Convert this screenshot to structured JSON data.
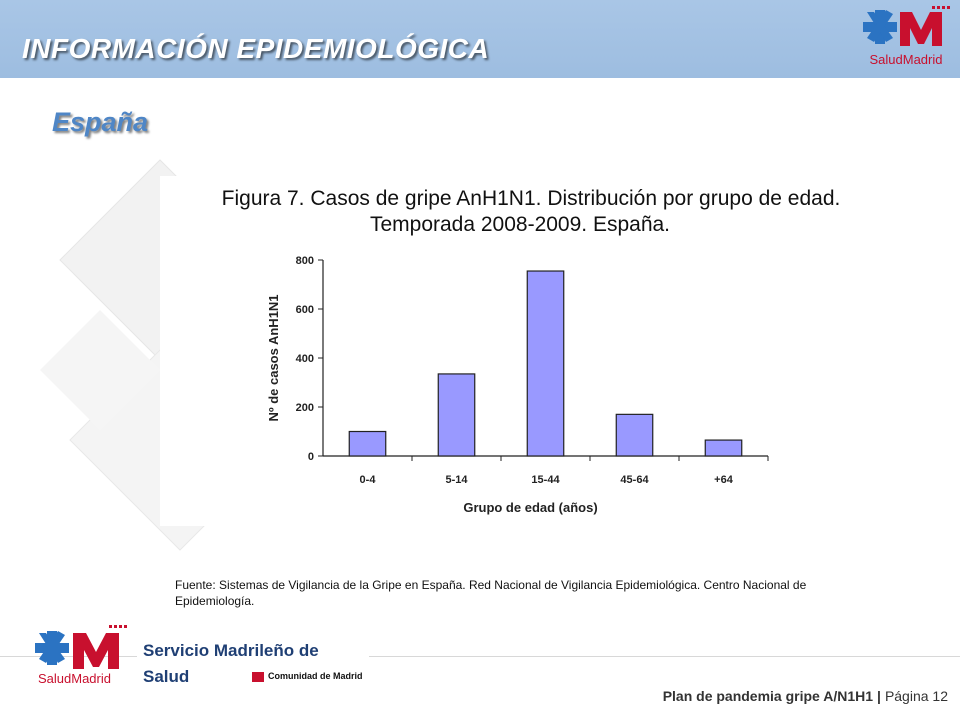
{
  "header": {
    "title": "INFORMACIÓN EPIDEMIOLÓGICA",
    "brand": {
      "salud": "Salud",
      "madrid": "Madrid"
    },
    "accent_color": "#9dbde0"
  },
  "subtitle": "España",
  "figure": {
    "title_line1": "Figura 7. Casos de gripe AnH1N1. Distribución por grupo de edad.",
    "title_line2": "Temporada 2008-2009. España."
  },
  "chart_data": {
    "type": "bar",
    "title": "Figura 7. Casos de gripe AnH1N1. Distribución por grupo de edad. Temporada 2008-2009. España.",
    "categories": [
      "0-4",
      "5-14",
      "15-44",
      "45-64",
      "+64"
    ],
    "values": [
      100,
      335,
      755,
      170,
      65
    ],
    "xlabel": "Grupo de edad (años)",
    "ylabel": "Nº de casos AnH1N1",
    "ylim": [
      0,
      800
    ],
    "yticks": [
      "0",
      "200",
      "400",
      "600",
      "800"
    ],
    "grid": false,
    "bar_color": "#9999ff"
  },
  "caption": "Fuente: Sistemas de Vigilancia de la Gripe en España. Red Nacional de Vigilancia Epidemiológica. Centro Nacional de Epidemiología.",
  "footer": {
    "organization": "Servicio Madrileño de Salud",
    "brand": {
      "salud": "Salud",
      "madrid": "Madrid"
    },
    "comunidad": "Comunidad de Madrid",
    "plan": "Plan de pandemia gripe A/N1H1",
    "separator": "|",
    "page": "Página 12"
  }
}
